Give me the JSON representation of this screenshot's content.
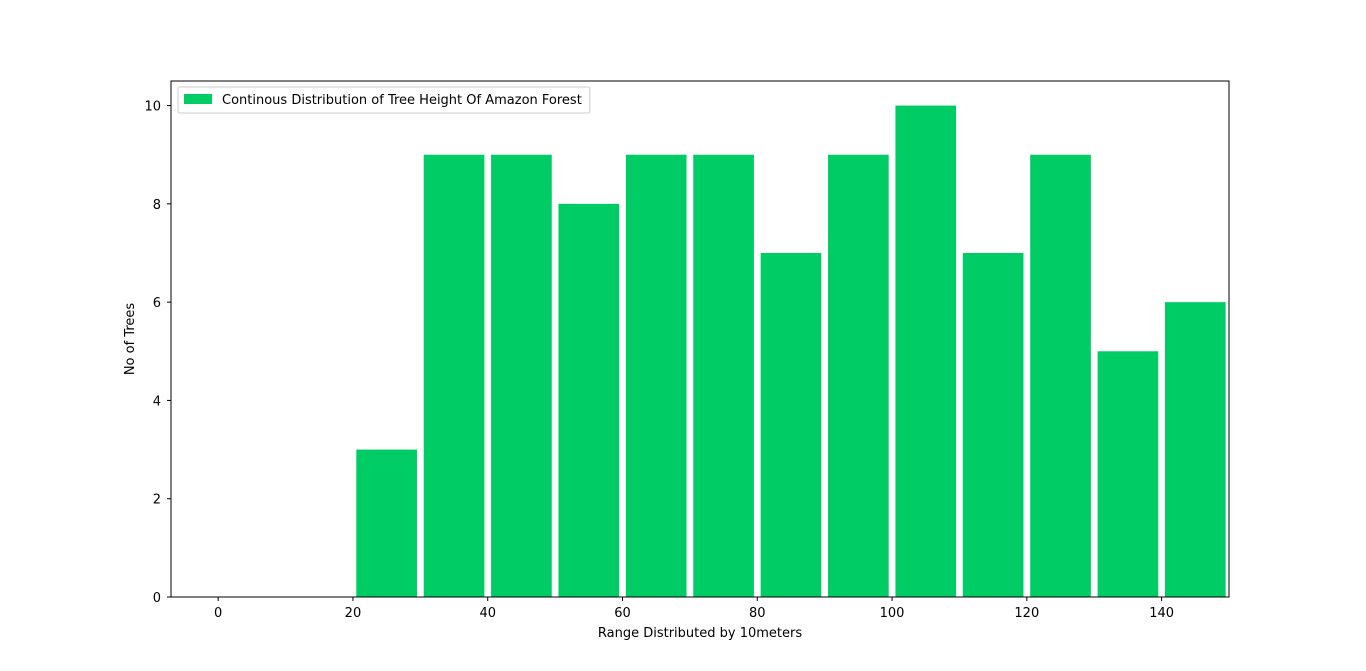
{
  "chart_data": {
    "type": "bar",
    "x": [
      25,
      35,
      45,
      55,
      65,
      75,
      85,
      95,
      105,
      115,
      125,
      135,
      145
    ],
    "bar_width": 9,
    "values": [
      3,
      9,
      9,
      8,
      9,
      9,
      7,
      9,
      10,
      7,
      9,
      5,
      6
    ],
    "series": [
      {
        "name": "Continous Distribution of Tree Height Of Amazon Forest",
        "color": "#00cc66"
      }
    ],
    "xlabel": "Range Distributed by 10meters",
    "ylabel": "No of Trees",
    "xlim": [
      -7,
      150
    ],
    "ylim": [
      0,
      10.5
    ],
    "xticks": [
      0,
      20,
      40,
      60,
      80,
      100,
      120,
      140
    ],
    "yticks": [
      0,
      2,
      4,
      6,
      8,
      10
    ],
    "grid": false,
    "legend": "upper-left"
  }
}
